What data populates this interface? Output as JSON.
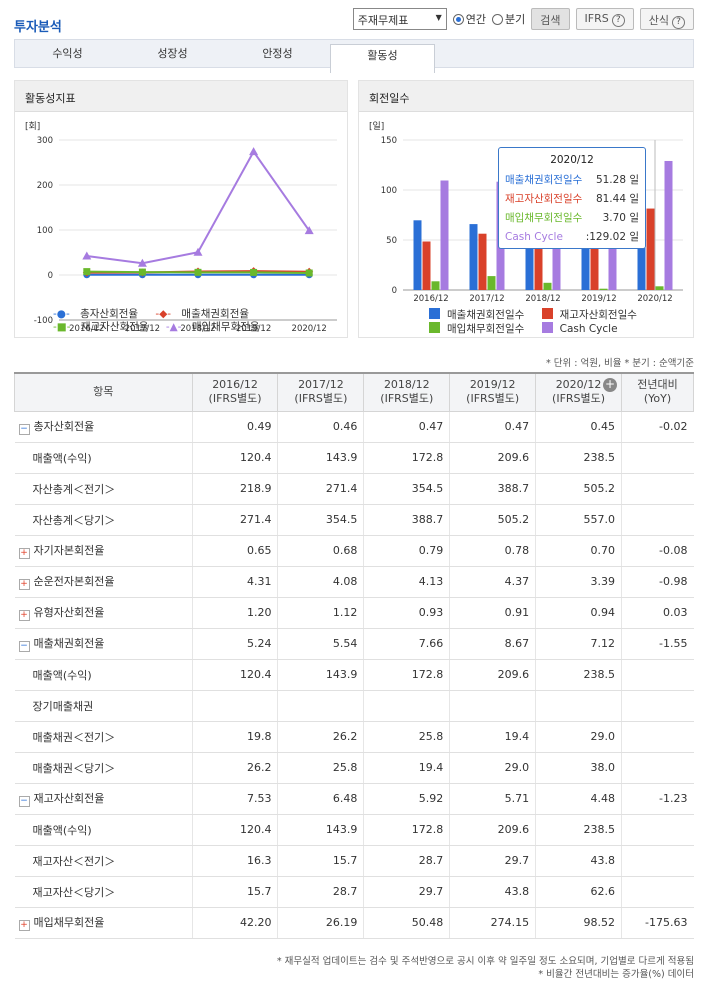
{
  "page_title": "투자분석",
  "toolbar": {
    "statement_select": "주재무제표",
    "radio_annual": "연간",
    "radio_quarter": "분기",
    "search_label": "검색",
    "ifrs_label": "IFRS",
    "formula_label": "산식"
  },
  "tabs": [
    "수익성",
    "성장성",
    "안정성",
    "활동성"
  ],
  "left_panel": {
    "title": "활동성지표",
    "unit": "[회]"
  },
  "right_panel": {
    "title": "회전일수",
    "unit": "[일]"
  },
  "tooltip": {
    "year": "2020/12",
    "rows": [
      {
        "label": "매출채권회전일수",
        "value": "51.28 일",
        "color": "#2a6fd6"
      },
      {
        "label": "재고자산회전일수",
        "value": "81.44 일",
        "color": "#d9412a"
      },
      {
        "label": "매입채무회전일수",
        "value": "3.70 일",
        "color": "#6ab82c"
      },
      {
        "label": "Cash Cycle",
        "value": ":129.02 일",
        "color": "#a67be0"
      }
    ]
  },
  "chart_data": [
    {
      "type": "line",
      "categories": [
        "2016/12",
        "2017/12",
        "2018/12",
        "2019/12",
        "2020/12"
      ],
      "ylim": [
        -100,
        300
      ],
      "yticks": [
        -100,
        0,
        100,
        200,
        300
      ],
      "series": [
        {
          "name": "총자산회전율",
          "color": "#2a6fd6",
          "marker": "circle",
          "values": [
            0.49,
            0.46,
            0.47,
            0.47,
            0.45
          ]
        },
        {
          "name": "매출채권회전율",
          "color": "#d9412a",
          "marker": "diamond",
          "values": [
            5.24,
            5.54,
            7.66,
            8.67,
            7.12
          ]
        },
        {
          "name": "재고자산회전율",
          "color": "#6ab82c",
          "marker": "square",
          "values": [
            7.53,
            6.48,
            5.92,
            5.71,
            4.48
          ]
        },
        {
          "name": "매입채무회전율",
          "color": "#a67be0",
          "marker": "triangle",
          "values": [
            42.2,
            26.19,
            50.48,
            274.15,
            98.52
          ]
        }
      ]
    },
    {
      "type": "bar",
      "categories": [
        "2016/12",
        "2017/12",
        "2018/12",
        "2019/12",
        "2020/12"
      ],
      "ylim": [
        0,
        150
      ],
      "yticks": [
        0,
        50,
        100,
        150
      ],
      "series": [
        {
          "name": "매출채권회전일수",
          "color": "#2a6fd6",
          "values": [
            69.7,
            65.9,
            47.7,
            42.1,
            51.28
          ]
        },
        {
          "name": "재고자산회전일수",
          "color": "#d9412a",
          "values": [
            48.5,
            56.3,
            61.7,
            63.9,
            81.44
          ]
        },
        {
          "name": "매입채무회전일수",
          "color": "#6ab82c",
          "values": [
            8.7,
            13.9,
            7.2,
            1.3,
            3.7
          ]
        },
        {
          "name": "Cash Cycle",
          "color": "#a67be0",
          "values": [
            109.5,
            108.3,
            102.2,
            104.7,
            129.02
          ]
        }
      ]
    }
  ],
  "unit_note": "* 단위 : 억원, 비율   * 분기 : 순액기준",
  "table": {
    "headers": [
      "항목",
      "2016/12\n(IFRS별도)",
      "2017/12\n(IFRS별도)",
      "2018/12\n(IFRS별도)",
      "2019/12\n(IFRS별도)",
      "2020/12\n(IFRS별도)",
      "전년대비\n(YoY)"
    ],
    "rows": [
      {
        "label": "총자산회전율",
        "toggle": "minus",
        "values": [
          "0.49",
          "0.46",
          "0.47",
          "0.47",
          "0.45"
        ],
        "yoy": "-0.02"
      },
      {
        "label": "매출액(수익)",
        "values": [
          "120.4",
          "143.9",
          "172.8",
          "209.6",
          "238.5"
        ],
        "yoy": ""
      },
      {
        "label": "자산총계＜전기＞",
        "values": [
          "218.9",
          "271.4",
          "354.5",
          "388.7",
          "505.2"
        ],
        "yoy": ""
      },
      {
        "label": "자산총계＜당기＞",
        "values": [
          "271.4",
          "354.5",
          "388.7",
          "505.2",
          "557.0"
        ],
        "yoy": ""
      },
      {
        "label": "자기자본회전율",
        "toggle": "plus",
        "values": [
          "0.65",
          "0.68",
          "0.79",
          "0.78",
          "0.70"
        ],
        "yoy": "-0.08"
      },
      {
        "label": "순운전자본회전율",
        "toggle": "plus",
        "values": [
          "4.31",
          "4.08",
          "4.13",
          "4.37",
          "3.39"
        ],
        "yoy": "-0.98"
      },
      {
        "label": "유형자산회전율",
        "toggle": "plus",
        "values": [
          "1.20",
          "1.12",
          "0.93",
          "0.91",
          "0.94"
        ],
        "yoy": "0.03"
      },
      {
        "label": "매출채권회전율",
        "toggle": "minus",
        "values": [
          "5.24",
          "5.54",
          "7.66",
          "8.67",
          "7.12"
        ],
        "yoy": "-1.55"
      },
      {
        "label": "매출액(수익)",
        "values": [
          "120.4",
          "143.9",
          "172.8",
          "209.6",
          "238.5"
        ],
        "yoy": ""
      },
      {
        "label": "장기매출채권",
        "values": [
          "",
          "",
          "",
          "",
          ""
        ],
        "yoy": ""
      },
      {
        "label": "매출채권＜전기＞",
        "values": [
          "19.8",
          "26.2",
          "25.8",
          "19.4",
          "29.0"
        ],
        "yoy": ""
      },
      {
        "label": "매출채권＜당기＞",
        "values": [
          "26.2",
          "25.8",
          "19.4",
          "29.0",
          "38.0"
        ],
        "yoy": ""
      },
      {
        "label": "재고자산회전율",
        "toggle": "minus",
        "values": [
          "7.53",
          "6.48",
          "5.92",
          "5.71",
          "4.48"
        ],
        "yoy": "-1.23"
      },
      {
        "label": "매출액(수익)",
        "values": [
          "120.4",
          "143.9",
          "172.8",
          "209.6",
          "238.5"
        ],
        "yoy": ""
      },
      {
        "label": "재고자산＜전기＞",
        "values": [
          "16.3",
          "15.7",
          "28.7",
          "29.7",
          "43.8"
        ],
        "yoy": ""
      },
      {
        "label": "재고자산＜당기＞",
        "values": [
          "15.7",
          "28.7",
          "29.7",
          "43.8",
          "62.6"
        ],
        "yoy": ""
      },
      {
        "label": "매입채무회전율",
        "toggle": "plus",
        "values": [
          "42.20",
          "26.19",
          "50.48",
          "274.15",
          "98.52"
        ],
        "yoy": "-175.63"
      }
    ]
  },
  "footnotes": [
    "* 재무실적 업데이트는 검수 및 주석반영으로 공시 이후 약 일주일 정도 소요되며, 기업별로 다르게 적용됨",
    "* 비율간 전년대비는 증가율(%) 데이터"
  ]
}
